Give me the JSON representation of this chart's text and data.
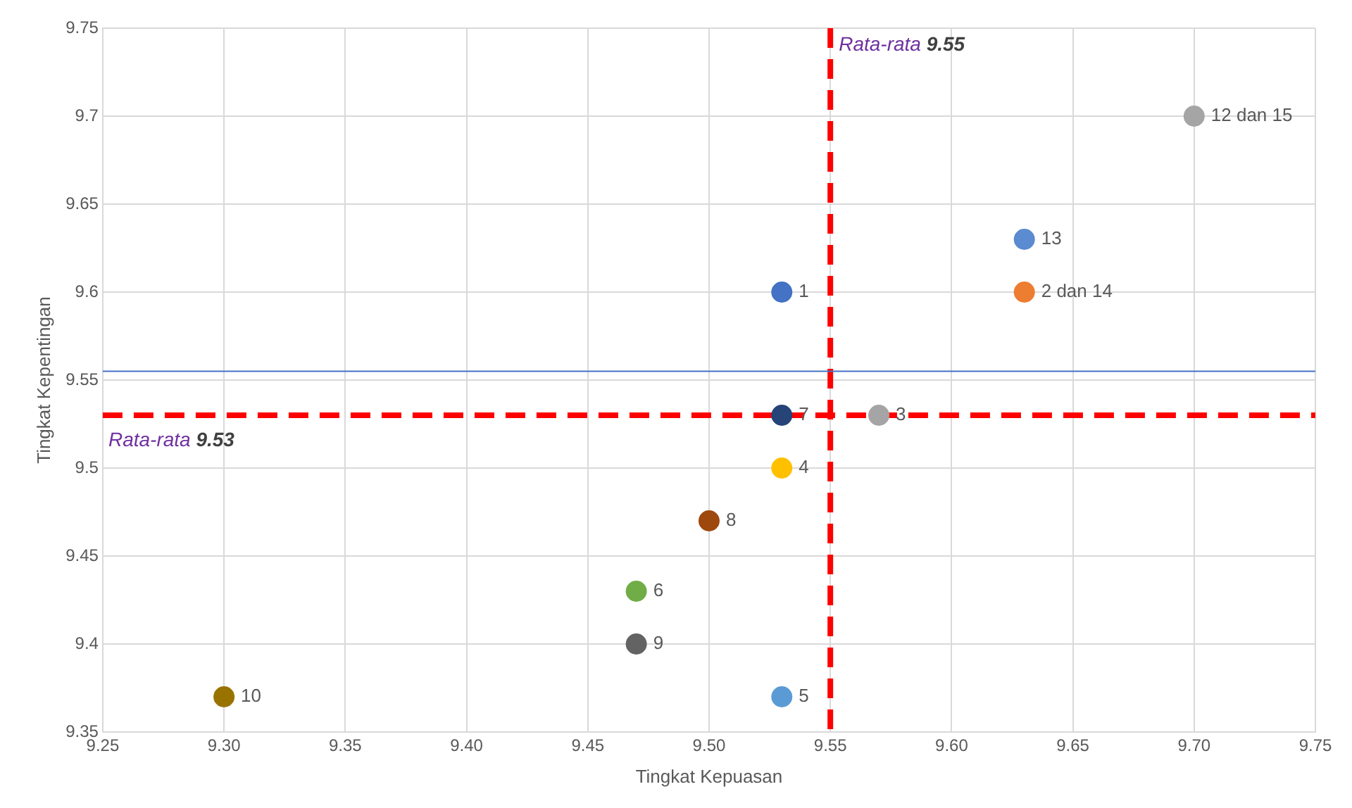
{
  "chart_data": {
    "type": "scatter",
    "xlabel": "Tingkat Kepuasan",
    "ylabel": "Tingkat Kepentingan",
    "xlim": [
      9.25,
      9.75
    ],
    "xticks": [
      {
        "value": 9.25,
        "label": "9.25"
      },
      {
        "value": 9.3,
        "label": "9.30"
      },
      {
        "value": 9.35,
        "label": "9.35"
      },
      {
        "value": 9.4,
        "label": "9.40"
      },
      {
        "value": 9.45,
        "label": "9.45"
      },
      {
        "value": 9.5,
        "label": "9.50"
      },
      {
        "value": 9.55,
        "label": "9.55"
      },
      {
        "value": 9.6,
        "label": "9.60"
      },
      {
        "value": 9.65,
        "label": "9.65"
      },
      {
        "value": 9.7,
        "label": "9.70"
      },
      {
        "value": 9.75,
        "label": "9.75"
      }
    ],
    "ylim": [
      9.35,
      9.75
    ],
    "yticks": [
      9.35,
      9.4,
      9.45,
      9.5,
      9.55,
      9.6,
      9.65,
      9.7,
      9.75
    ],
    "grid": true,
    "legend": false,
    "marker": "circle",
    "series": [
      {
        "name": "1",
        "color": "#4472c4",
        "x": [
          9.53
        ],
        "values": [
          9.6
        ]
      },
      {
        "name": "2 dan 14",
        "color": "#ed7d31",
        "x": [
          9.63
        ],
        "values": [
          9.6
        ]
      },
      {
        "name": "3",
        "color": "#a5a5a5",
        "x": [
          9.57
        ],
        "values": [
          9.53
        ]
      },
      {
        "name": "4",
        "color": "#ffc000",
        "x": [
          9.53
        ],
        "values": [
          9.5
        ]
      },
      {
        "name": "5",
        "color": "#5b9bd5",
        "x": [
          9.53
        ],
        "values": [
          9.37
        ]
      },
      {
        "name": "6",
        "color": "#70ad47",
        "x": [
          9.47
        ],
        "values": [
          9.43
        ]
      },
      {
        "name": "7",
        "color": "#264478",
        "x": [
          9.53
        ],
        "values": [
          9.53
        ]
      },
      {
        "name": "8",
        "color": "#9e480e",
        "x": [
          9.5
        ],
        "values": [
          9.47
        ]
      },
      {
        "name": "9",
        "color": "#636363",
        "x": [
          9.47
        ],
        "values": [
          9.4
        ]
      },
      {
        "name": "10",
        "color": "#997300",
        "x": [
          9.3
        ],
        "values": [
          9.37
        ]
      },
      {
        "name": "12 dan 15",
        "color": "#a5a5a5",
        "x": [
          9.7
        ],
        "values": [
          9.7
        ]
      },
      {
        "name": "13",
        "color": "#5b8bd0",
        "x": [
          9.63
        ],
        "values": [
          9.63
        ]
      }
    ],
    "ref_lines": [
      {
        "axis": "x",
        "value": 9.55,
        "label": "Rata-rata 9.55",
        "color": "#ff0000",
        "line_style": "dashed"
      },
      {
        "axis": "y",
        "value": 9.53,
        "label": "Rata-rata 9.53",
        "color": "#ff0000",
        "line_style": "dashed"
      },
      {
        "axis": "y",
        "value": 9.555,
        "color": "#4472c4",
        "line_style": "solid"
      }
    ]
  }
}
